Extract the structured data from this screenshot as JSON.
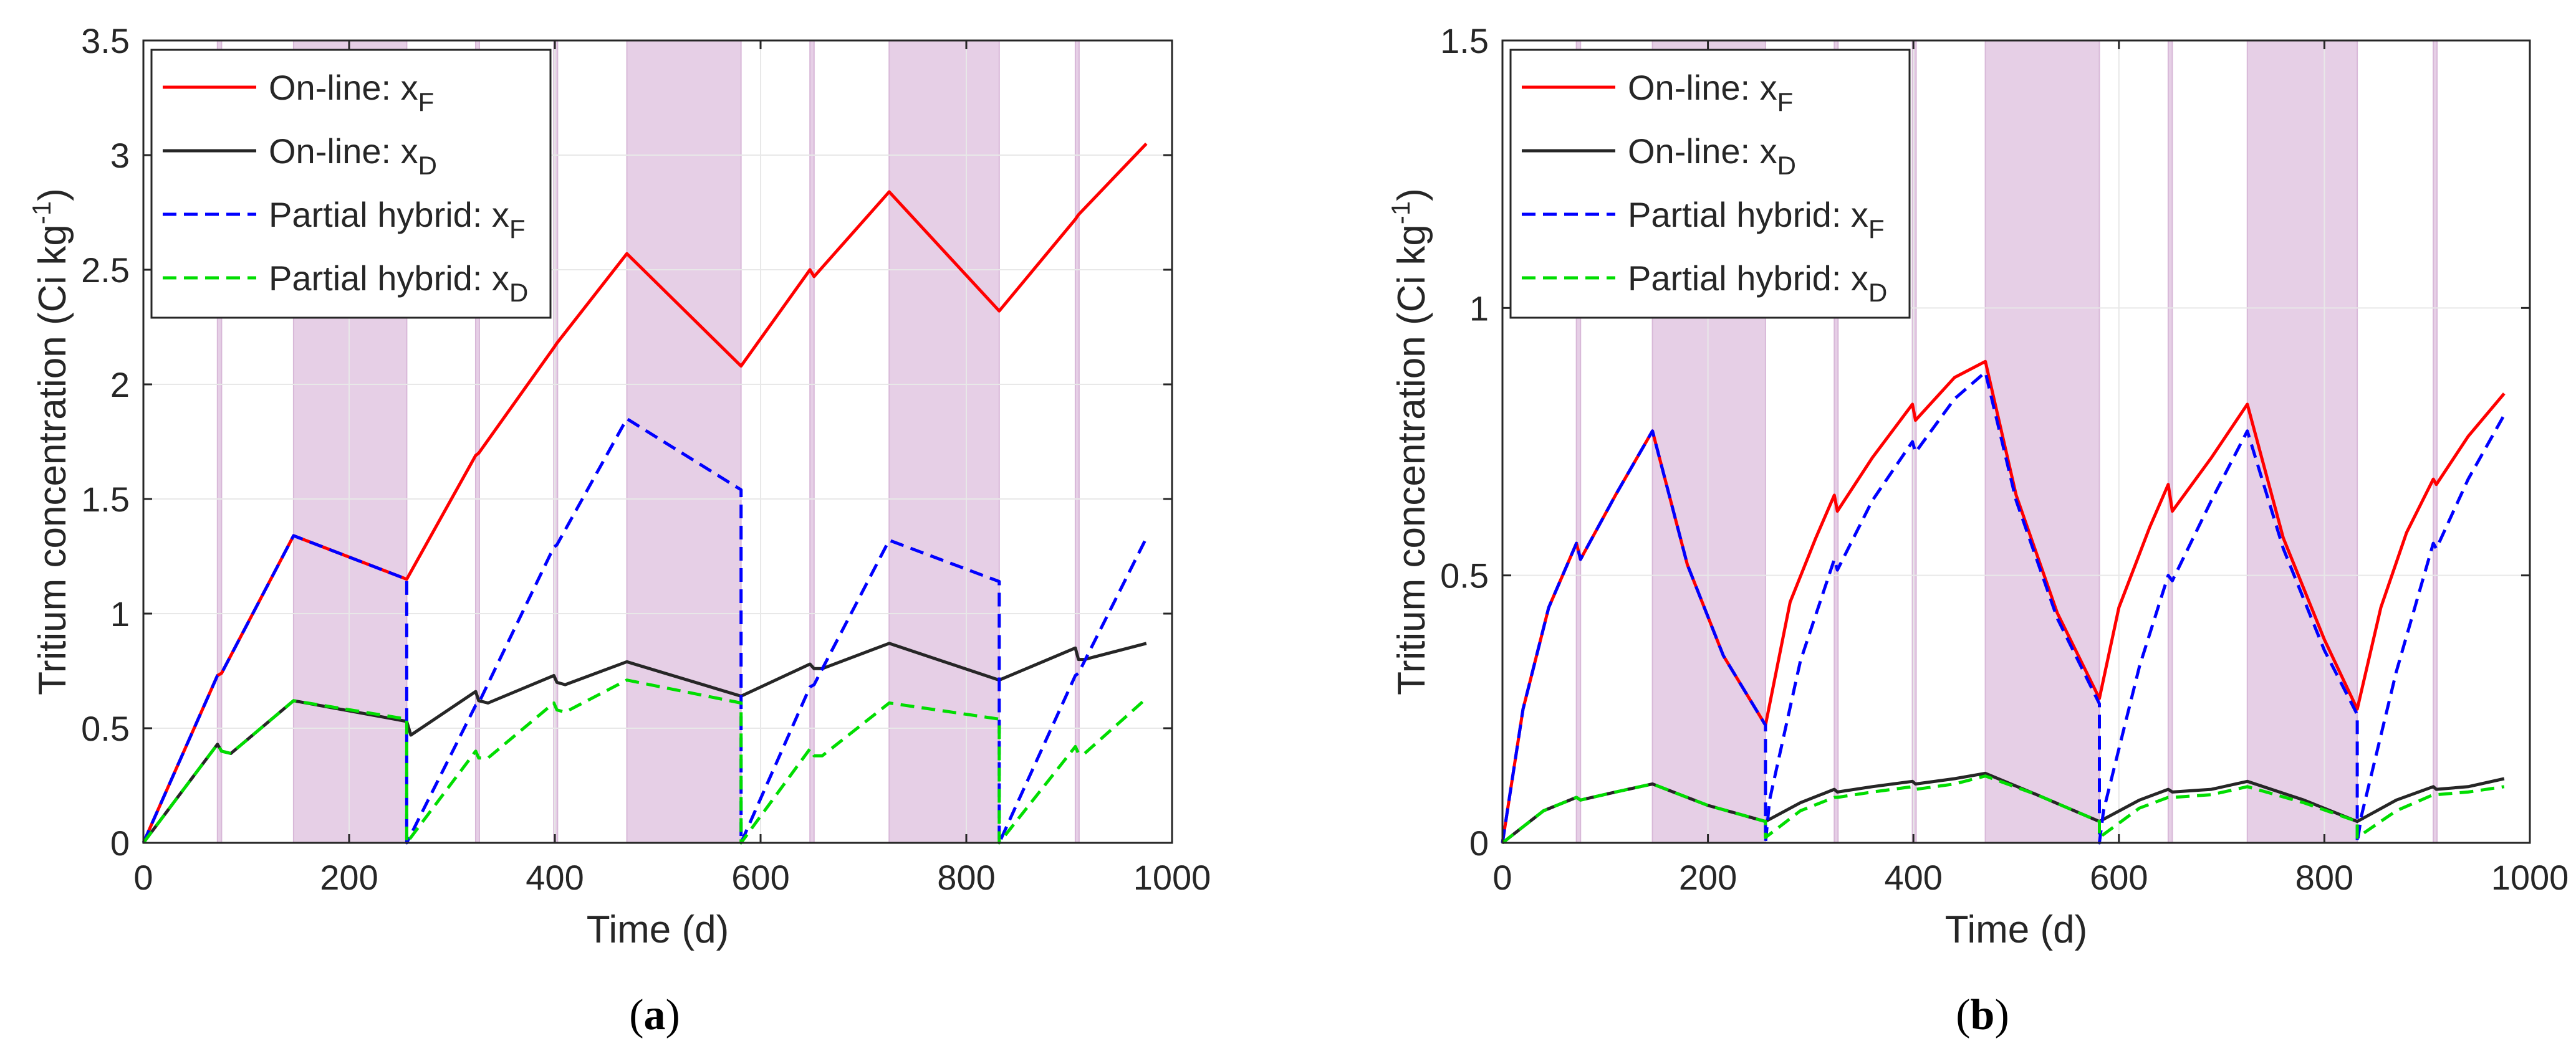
{
  "colors": {
    "shade": "#e6cfe6",
    "shade_line": "#d8b8d8",
    "red": "#ff0000",
    "black": "#262626",
    "blue": "#0000ff",
    "green": "#00dd00",
    "grid": "#e8e8e8"
  },
  "chart_data": [
    {
      "panel": "(a)",
      "panel_open": "(",
      "panel_letter": "a",
      "panel_close": ")",
      "type": "line",
      "xlabel": "Time (d)",
      "ylabel": "Tritium concentration (Ci kg",
      "ylabel_sup": "-1",
      "ylabel_end": ")",
      "xlim": [
        0,
        1000
      ],
      "ylim": [
        0,
        3.5
      ],
      "xticks": [
        0,
        200,
        400,
        600,
        800,
        1000
      ],
      "yticks": [
        0,
        0.5,
        1,
        1.5,
        2,
        2.5,
        3,
        3.5
      ],
      "xtick_labels": [
        "0",
        "200",
        "400",
        "600",
        "800",
        "1000"
      ],
      "ytick_labels": [
        "0",
        "0.5",
        "1",
        "1.5",
        "2",
        "2.5",
        "3",
        "3.5"
      ],
      "grid": true,
      "legend_position": "top-left",
      "shaded_intervals": [
        [
          72,
          76
        ],
        [
          146,
          256
        ],
        [
          323,
          326
        ],
        [
          399,
          402
        ],
        [
          470,
          581
        ],
        [
          648,
          652
        ],
        [
          725,
          832
        ],
        [
          906,
          909
        ]
      ],
      "series": [
        {
          "name": "On-line: x",
          "sub": "F",
          "color": "red",
          "dash": "solid",
          "x": [
            0,
            72,
            76,
            146,
            256,
            323,
            326,
            399,
            402,
            470,
            581,
            648,
            652,
            725,
            832,
            906,
            909,
            975
          ],
          "y": [
            0,
            0.73,
            0.74,
            1.34,
            1.15,
            1.69,
            1.7,
            2.16,
            2.18,
            2.57,
            2.08,
            2.5,
            2.47,
            2.84,
            2.32,
            2.72,
            2.74,
            3.05
          ]
        },
        {
          "name": "On-line: x",
          "sub": "D",
          "color": "black",
          "dash": "solid",
          "x": [
            0,
            72,
            76,
            85,
            146,
            256,
            260,
            323,
            326,
            335,
            399,
            402,
            410,
            470,
            581,
            648,
            652,
            660,
            725,
            832,
            906,
            909,
            915,
            975
          ],
          "y": [
            0,
            0.43,
            0.4,
            0.39,
            0.62,
            0.53,
            0.47,
            0.66,
            0.62,
            0.61,
            0.73,
            0.7,
            0.69,
            0.79,
            0.64,
            0.78,
            0.76,
            0.76,
            0.87,
            0.71,
            0.85,
            0.8,
            0.8,
            0.87
          ]
        },
        {
          "name": "Partial hybrid: x",
          "sub": "F",
          "color": "blue",
          "dash": "dashed",
          "x": [
            0,
            72,
            76,
            146,
            256,
            256,
            323,
            326,
            399,
            402,
            470,
            581,
            581,
            648,
            652,
            725,
            832,
            832,
            906,
            909,
            975
          ],
          "y": [
            0,
            0.73,
            0.74,
            1.34,
            1.15,
            0,
            0.6,
            0.61,
            1.29,
            1.3,
            1.85,
            1.54,
            0,
            0.68,
            0.69,
            1.32,
            1.14,
            0,
            0.73,
            0.74,
            1.33
          ]
        },
        {
          "name": "Partial hybrid: x",
          "sub": "D",
          "color": "green",
          "dash": "dashed",
          "x": [
            0,
            72,
            76,
            85,
            146,
            256,
            256,
            323,
            326,
            335,
            399,
            402,
            410,
            470,
            581,
            581,
            648,
            652,
            660,
            725,
            832,
            832,
            906,
            909,
            915,
            975
          ],
          "y": [
            0,
            0.43,
            0.4,
            0.39,
            0.62,
            0.54,
            0,
            0.4,
            0.37,
            0.37,
            0.61,
            0.58,
            0.57,
            0.71,
            0.61,
            0,
            0.41,
            0.38,
            0.38,
            0.61,
            0.54,
            0,
            0.42,
            0.39,
            0.39,
            0.63
          ]
        }
      ]
    },
    {
      "panel": "(b)",
      "panel_open": "(",
      "panel_letter": "b",
      "panel_close": ")",
      "type": "line",
      "xlabel": "Time (d)",
      "ylabel": "Tritium concentration (Ci kg",
      "ylabel_sup": "-1",
      "ylabel_end": ")",
      "xlim": [
        0,
        1000
      ],
      "ylim": [
        0,
        1.5
      ],
      "xticks": [
        0,
        200,
        400,
        600,
        800,
        1000
      ],
      "yticks": [
        0,
        0.5,
        1,
        1.5
      ],
      "xtick_labels": [
        "0",
        "200",
        "400",
        "600",
        "800",
        "1000"
      ],
      "ytick_labels": [
        "0",
        "0.5",
        "1",
        "1.5"
      ],
      "grid": true,
      "legend_position": "top-left",
      "shaded_intervals": [
        [
          72,
          76
        ],
        [
          146,
          256
        ],
        [
          323,
          326
        ],
        [
          399,
          402
        ],
        [
          470,
          581
        ],
        [
          648,
          652
        ],
        [
          725,
          832
        ],
        [
          906,
          909
        ]
      ],
      "series": [
        {
          "name": "On-line: x",
          "sub": "F",
          "color": "red",
          "dash": "solid",
          "x": [
            0,
            20,
            45,
            72,
            76,
            110,
            146,
            180,
            215,
            256,
            280,
            305,
            323,
            326,
            360,
            399,
            402,
            440,
            470,
            500,
            540,
            581,
            600,
            630,
            648,
            652,
            690,
            725,
            760,
            800,
            832,
            855,
            880,
            906,
            909,
            940,
            975
          ],
          "y": [
            0,
            0.25,
            0.44,
            0.56,
            0.53,
            0.65,
            0.77,
            0.52,
            0.35,
            0.22,
            0.45,
            0.57,
            0.65,
            0.62,
            0.72,
            0.82,
            0.79,
            0.87,
            0.9,
            0.65,
            0.43,
            0.27,
            0.44,
            0.59,
            0.67,
            0.62,
            0.72,
            0.82,
            0.57,
            0.38,
            0.25,
            0.44,
            0.58,
            0.68,
            0.67,
            0.76,
            0.84
          ]
        },
        {
          "name": "On-line: x",
          "sub": "D",
          "color": "black",
          "dash": "solid",
          "x": [
            0,
            40,
            72,
            76,
            110,
            146,
            200,
            256,
            290,
            323,
            326,
            360,
            399,
            402,
            440,
            470,
            520,
            581,
            620,
            648,
            652,
            690,
            725,
            780,
            832,
            870,
            906,
            909,
            940,
            975
          ],
          "y": [
            0,
            0.06,
            0.085,
            0.08,
            0.095,
            0.11,
            0.07,
            0.04,
            0.075,
            0.1,
            0.095,
            0.105,
            0.115,
            0.11,
            0.12,
            0.13,
            0.09,
            0.04,
            0.08,
            0.1,
            0.095,
            0.1,
            0.115,
            0.08,
            0.04,
            0.08,
            0.105,
            0.1,
            0.105,
            0.12
          ]
        },
        {
          "name": "Partial hybrid: x",
          "sub": "F",
          "color": "blue",
          "dash": "dashed",
          "x": [
            0,
            20,
            45,
            72,
            76,
            110,
            146,
            180,
            215,
            256,
            256,
            260,
            290,
            323,
            326,
            360,
            399,
            402,
            440,
            470,
            500,
            540,
            581,
            581,
            585,
            620,
            648,
            652,
            690,
            725,
            760,
            800,
            832,
            832,
            836,
            870,
            906,
            909,
            940,
            975
          ],
          "y": [
            0,
            0.25,
            0.44,
            0.56,
            0.53,
            0.65,
            0.77,
            0.52,
            0.35,
            0.22,
            0,
            0.08,
            0.34,
            0.53,
            0.51,
            0.64,
            0.75,
            0.73,
            0.83,
            0.88,
            0.64,
            0.42,
            0.26,
            0,
            0.06,
            0.33,
            0.5,
            0.49,
            0.64,
            0.77,
            0.55,
            0.36,
            0.24,
            0,
            0.05,
            0.32,
            0.56,
            0.55,
            0.68,
            0.8
          ]
        },
        {
          "name": "Partial hybrid: x",
          "sub": "D",
          "color": "green",
          "dash": "dashed",
          "x": [
            0,
            40,
            72,
            76,
            110,
            146,
            200,
            256,
            256,
            290,
            323,
            326,
            360,
            399,
            402,
            440,
            470,
            520,
            581,
            581,
            620,
            648,
            652,
            690,
            725,
            780,
            832,
            832,
            870,
            906,
            909,
            940,
            975
          ],
          "y": [
            0,
            0.06,
            0.085,
            0.08,
            0.095,
            0.11,
            0.07,
            0.04,
            0.01,
            0.06,
            0.085,
            0.085,
            0.095,
            0.105,
            0.1,
            0.11,
            0.125,
            0.09,
            0.04,
            0.01,
            0.065,
            0.085,
            0.085,
            0.09,
            0.105,
            0.075,
            0.04,
            0.01,
            0.06,
            0.09,
            0.09,
            0.095,
            0.105
          ]
        }
      ]
    }
  ]
}
